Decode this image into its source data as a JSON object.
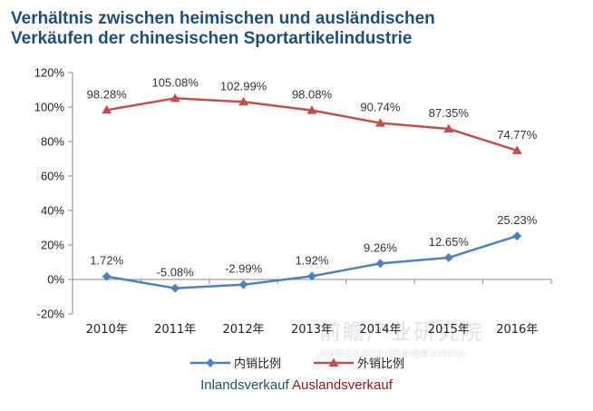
{
  "title": {
    "line1": "Verhältnis zwischen heimischen und ausländischen",
    "line2": "Verkäufen der chinesischen Sportartikelindustrie"
  },
  "chart_data": {
    "type": "line",
    "categories": [
      "2010年",
      "2011年",
      "2012年",
      "2013年",
      "2014年",
      "2015年",
      "2016年"
    ],
    "series": [
      {
        "name": "内销比例",
        "color": "#4f81bd",
        "marker": "diamond",
        "values": [
          1.72,
          -5.08,
          -2.99,
          1.92,
          9.26,
          12.65,
          25.23
        ],
        "labels": [
          "1.72%",
          "-5.08%",
          "-2.99%",
          "1.92%",
          "9.26%",
          "12.65%",
          "25.23%"
        ]
      },
      {
        "name": "外销比例",
        "color": "#c0504d",
        "marker": "triangle",
        "values": [
          98.28,
          105.08,
          102.99,
          98.08,
          90.74,
          87.35,
          74.77
        ],
        "labels": [
          "98.28%",
          "105.08%",
          "102.99%",
          "98.08%",
          "90.74%",
          "87.35%",
          "74.77%"
        ]
      }
    ],
    "ylim": [
      -20,
      120
    ],
    "yticks": [
      -20,
      0,
      20,
      40,
      60,
      80,
      100,
      120
    ],
    "ytick_labels": [
      "-20%",
      "0%",
      "20%",
      "40%",
      "60%",
      "80%",
      "100%",
      "120%"
    ],
    "legend_position": "bottom",
    "grid": false
  },
  "sublabels": {
    "inland": "Inlandsverkauf",
    "ausland": "Auslandsverkauf"
  },
  "watermark": {
    "main": "前瞻产业研究院",
    "sub": "中国研究咨询行业领导者(股票:839599)"
  }
}
